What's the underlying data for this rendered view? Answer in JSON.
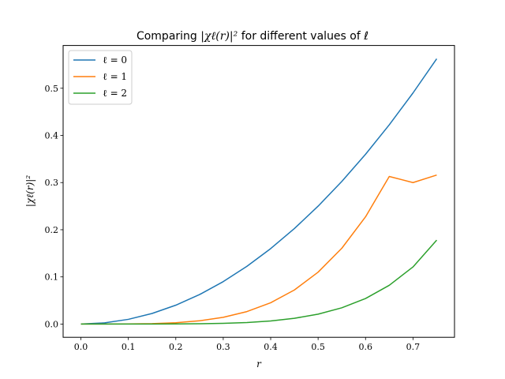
{
  "chart_data": {
    "type": "line",
    "title_prefix": "Comparing ",
    "title_math": "|χℓ(r)|²",
    "title_suffix": " for different values of ℓ",
    "xlabel": "r",
    "ylabel": "|χℓ(r)|²",
    "xlim": [
      -0.0375,
      0.7875
    ],
    "ylim": [
      -0.0281,
      0.5907
    ],
    "xticks": [
      0.0,
      0.1,
      0.2,
      0.3,
      0.4,
      0.5,
      0.6,
      0.7
    ],
    "xtick_labels": [
      "0.0",
      "0.1",
      "0.2",
      "0.3",
      "0.4",
      "0.5",
      "0.6",
      "0.7"
    ],
    "yticks": [
      0.0,
      0.1,
      0.2,
      0.3,
      0.4,
      0.5
    ],
    "ytick_labels": [
      "0.0",
      "0.1",
      "0.2",
      "0.3",
      "0.4",
      "0.5"
    ],
    "grid": false,
    "legend_position": "upper-left",
    "x": [
      0.0,
      0.05,
      0.1,
      0.15,
      0.2,
      0.25,
      0.3,
      0.35,
      0.4,
      0.45,
      0.5,
      0.55,
      0.6,
      0.65,
      0.7,
      0.75
    ],
    "series": [
      {
        "name": "ℓ = 0",
        "color": "#1f77b4",
        "values": [
          0.0,
          0.0025,
          0.01,
          0.0225,
          0.04,
          0.0625,
          0.09,
          0.1225,
          0.16,
          0.2025,
          0.25,
          0.3025,
          0.36,
          0.4225,
          0.49,
          0.5625
        ]
      },
      {
        "name": "ℓ = 1",
        "color": "#ff7f0e",
        "values": [
          0.0,
          1e-05,
          0.0002,
          0.0009,
          0.0028,
          0.0069,
          0.0143,
          0.0265,
          0.0452,
          0.0723,
          0.11,
          0.1608,
          0.2274,
          0.313,
          0.3,
          0.316
        ]
      },
      {
        "name": "ℓ = 2",
        "color": "#2ca02c",
        "values": [
          0.0,
          0.0,
          1e-05,
          5e-05,
          0.0002,
          0.0006,
          0.0015,
          0.0033,
          0.0066,
          0.0122,
          0.021,
          0.0345,
          0.0542,
          0.0822,
          0.1211,
          0.178
        ]
      }
    ]
  }
}
